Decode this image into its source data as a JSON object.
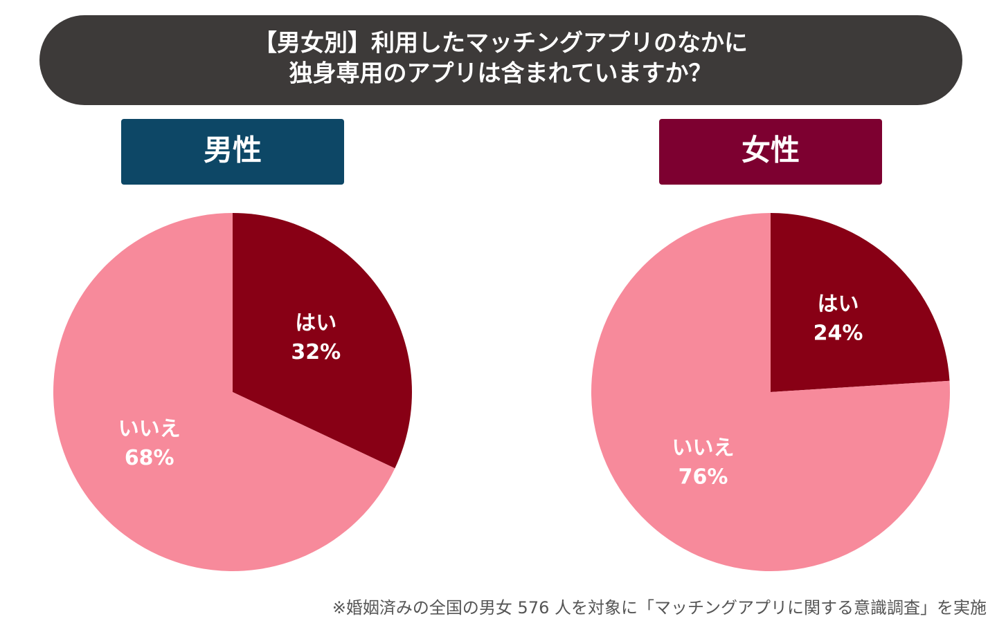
{
  "header": {
    "title_lines": [
      "【男女別】利用したマッチングアプリのなかに",
      "独身専用のアプリは含まれていますか？"
    ]
  },
  "chart_data": [
    {
      "type": "pie",
      "title": "男性",
      "categories": [
        "はい",
        "いいえ"
      ],
      "values": [
        32,
        68
      ],
      "value_labels": [
        "32%",
        "68%"
      ],
      "colors": [
        "#880015",
        "#f78a9b"
      ]
    },
    {
      "type": "pie",
      "title": "女性",
      "categories": [
        "はい",
        "いいえ"
      ],
      "values": [
        24,
        76
      ],
      "value_labels": [
        "24%",
        "76%"
      ],
      "colors": [
        "#880015",
        "#f78a9b"
      ]
    }
  ],
  "note": "※婚姻済みの全国の男女 576 人を対象に「マッチングアプリに関する意識調査」を実施"
}
